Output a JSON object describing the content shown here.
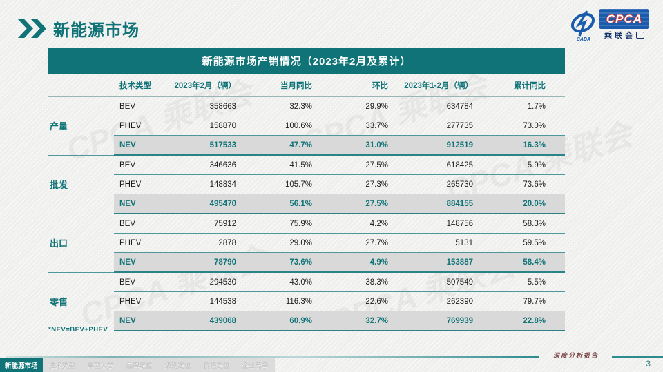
{
  "page": {
    "title": "新能源市场",
    "page_number": "3",
    "footer_report_label": "深度分析报告"
  },
  "logo": {
    "cpca": "CPCA",
    "cada": "CADA",
    "org_cn": "乘联会"
  },
  "decor": {
    "watermark_text": "CPCA 乘联会"
  },
  "colors": {
    "accent_teal": "#0f7377",
    "highlight_row_bg": "#d9d9d9",
    "logo_blue": "#1a5cab",
    "cpca_red": "#d23030",
    "report_label_red": "#7a4545"
  },
  "table": {
    "title": "新能源市场产销情况（2023年2月及累计）",
    "columns": [
      "技术类型",
      "2023年2月（辆）",
      "当月同比",
      "环比",
      "2023年1-2月（辆）",
      "累计同比"
    ],
    "footnote": "*NEV=BEV+PHEV",
    "sections": [
      {
        "label": "产量",
        "rows": [
          {
            "type": "BEV",
            "values": [
              "358663",
              "32.3%",
              "29.9%",
              "634784",
              "1.7%"
            ],
            "highlight": false
          },
          {
            "type": "PHEV",
            "values": [
              "158870",
              "100.6%",
              "33.7%",
              "277735",
              "73.0%"
            ],
            "highlight": false
          },
          {
            "type": "NEV",
            "values": [
              "517533",
              "47.7%",
              "31.0%",
              "912519",
              "16.3%"
            ],
            "highlight": true
          }
        ]
      },
      {
        "label": "批发",
        "rows": [
          {
            "type": "BEV",
            "values": [
              "346636",
              "41.5%",
              "27.5%",
              "618425",
              "5.9%"
            ],
            "highlight": false
          },
          {
            "type": "PHEV",
            "values": [
              "148834",
              "105.7%",
              "27.3%",
              "265730",
              "73.6%"
            ],
            "highlight": false
          },
          {
            "type": "NEV",
            "values": [
              "495470",
              "56.1%",
              "27.5%",
              "884155",
              "20.0%"
            ],
            "highlight": true
          }
        ]
      },
      {
        "label": "出口",
        "rows": [
          {
            "type": "BEV",
            "values": [
              "75912",
              "75.9%",
              "4.2%",
              "148756",
              "58.3%"
            ],
            "highlight": false
          },
          {
            "type": "PHEV",
            "values": [
              "2878",
              "29.0%",
              "27.7%",
              "5131",
              "59.5%"
            ],
            "highlight": false
          },
          {
            "type": "NEV",
            "values": [
              "78790",
              "73.6%",
              "4.9%",
              "153887",
              "58.4%"
            ],
            "highlight": true
          }
        ]
      },
      {
        "label": "零售",
        "rows": [
          {
            "type": "BEV",
            "values": [
              "294530",
              "43.0%",
              "38.3%",
              "507549",
              "5.5%"
            ],
            "highlight": false
          },
          {
            "type": "PHEV",
            "values": [
              "144538",
              "116.3%",
              "22.6%",
              "262390",
              "79.7%"
            ],
            "highlight": false
          },
          {
            "type": "NEV",
            "values": [
              "439068",
              "60.9%",
              "32.7%",
              "769939",
              "22.8%"
            ],
            "highlight": true
          }
        ]
      }
    ]
  },
  "tabs": [
    {
      "label": "新能源市场",
      "active": true
    },
    {
      "label": "技术类型",
      "active": false
    },
    {
      "label": "车型大类",
      "active": false
    },
    {
      "label": "品牌定位",
      "active": false
    },
    {
      "label": "级别定位",
      "active": false
    },
    {
      "label": "价格定位",
      "active": false
    },
    {
      "label": "企业竞争",
      "active": false
    }
  ]
}
